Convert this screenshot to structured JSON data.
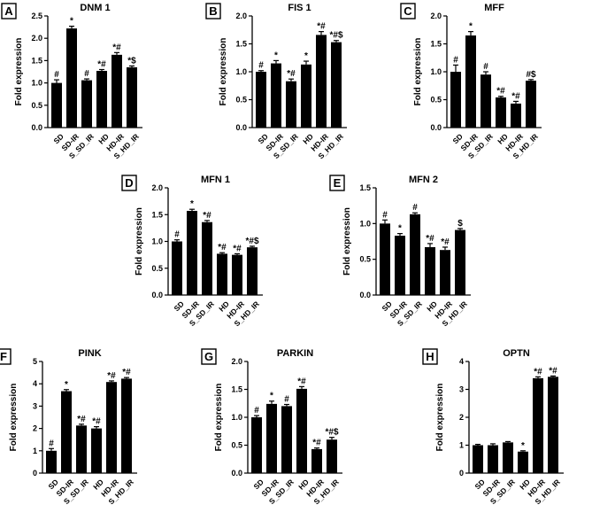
{
  "figure": {
    "background": "#ffffff",
    "bar_color": "#000000"
  },
  "chart_data": [
    {
      "letter": "A",
      "title": "DNM 1",
      "type": "bar",
      "ylabel": "Fold expression",
      "categories": [
        "SD",
        "SD-IR",
        "S_SD_IR",
        "HD",
        "HD-IR",
        "S_HD_IR"
      ],
      "values": [
        1.0,
        2.22,
        1.06,
        1.27,
        1.63,
        1.35
      ],
      "errors": [
        0.07,
        0.05,
        0.03,
        0.03,
        0.05,
        0.03
      ],
      "annotations": [
        "#",
        "*",
        "#",
        "*#",
        "*#",
        "*$"
      ],
      "ylim": [
        0,
        2.5
      ],
      "yticks": [
        "0.0",
        "0.5",
        "1.0",
        "1.5",
        "2.0",
        "2.5"
      ]
    },
    {
      "letter": "B",
      "title": "FIS 1",
      "type": "bar",
      "ylabel": "Fold expression",
      "categories": [
        "SD",
        "SD-IR",
        "S_SD_IR",
        "HD",
        "HD-IR",
        "S_HD_IR"
      ],
      "values": [
        1.0,
        1.15,
        0.83,
        1.13,
        1.66,
        1.53
      ],
      "errors": [
        0.02,
        0.05,
        0.04,
        0.06,
        0.06,
        0.03
      ],
      "annotations": [
        "#",
        "*",
        "*#",
        "*",
        "*#",
        "*#$"
      ],
      "ylim": [
        0,
        2.0
      ],
      "yticks": [
        "0.0",
        "0.5",
        "1.0",
        "1.5",
        "2.0"
      ]
    },
    {
      "letter": "C",
      "title": "MFF",
      "type": "bar",
      "ylabel": "Fold expression",
      "categories": [
        "SD",
        "SD-IR",
        "S_SD_IR",
        "HD",
        "HD-IR",
        "S_HD_IR"
      ],
      "values": [
        1.0,
        1.65,
        0.95,
        0.54,
        0.43,
        0.84
      ],
      "errors": [
        0.12,
        0.07,
        0.05,
        0.02,
        0.04,
        0.02
      ],
      "annotations": [
        "#",
        "*",
        "#",
        "*#",
        "*#",
        "#$"
      ],
      "ylim": [
        0,
        2.0
      ],
      "yticks": [
        "0.0",
        "0.5",
        "1.0",
        "1.5",
        "2.0"
      ]
    },
    {
      "letter": "D",
      "title": "MFN 1",
      "type": "bar",
      "ylabel": "Fold expression",
      "categories": [
        "SD",
        "SD-IR",
        "S_SD_IR",
        "HD",
        "HD-IR",
        "S_HD_IR"
      ],
      "values": [
        1.0,
        1.57,
        1.36,
        0.77,
        0.75,
        0.89
      ],
      "errors": [
        0.03,
        0.03,
        0.03,
        0.02,
        0.02,
        0.02
      ],
      "annotations": [
        "#",
        "*",
        "*#",
        "*#",
        "*#",
        "*#$"
      ],
      "ylim": [
        0,
        2.0
      ],
      "yticks": [
        "0.0",
        "0.5",
        "1.0",
        "1.5",
        "2.0"
      ]
    },
    {
      "letter": "E",
      "title": "MFN 2",
      "type": "bar",
      "ylabel": "Fold expression",
      "categories": [
        "SD",
        "SD-IR",
        "S_SD_IR",
        "HD",
        "HD-IR",
        "S_HD_IR"
      ],
      "values": [
        1.0,
        0.83,
        1.13,
        0.67,
        0.63,
        0.91
      ],
      "errors": [
        0.05,
        0.03,
        0.02,
        0.05,
        0.04,
        0.02
      ],
      "annotations": [
        "#",
        "*",
        "#",
        "*#",
        "*#",
        "$"
      ],
      "ylim": [
        0,
        1.5
      ],
      "yticks": [
        "0.0",
        "0.5",
        "1.0",
        "1.5"
      ]
    },
    {
      "letter": "F",
      "title": "PINK",
      "type": "bar",
      "ylabel": "Fold expression",
      "categories": [
        "SD",
        "SD-IR",
        "S_SD_IR",
        "HD",
        "HD-IR",
        "S_HD_IR"
      ],
      "values": [
        1.0,
        3.67,
        2.13,
        2.0,
        4.08,
        4.23
      ],
      "errors": [
        0.1,
        0.07,
        0.06,
        0.08,
        0.05,
        0.05
      ],
      "annotations": [
        "#",
        "*",
        "*#",
        "*#",
        "*#",
        "*#"
      ],
      "ylim": [
        0,
        5
      ],
      "yticks": [
        "0",
        "1",
        "2",
        "3",
        "4",
        "5"
      ]
    },
    {
      "letter": "G",
      "title": "PARKIN",
      "type": "bar",
      "ylabel": "Fold expression",
      "categories": [
        "SD",
        "SD-IR",
        "S_SD_IR",
        "HD",
        "HD-IR",
        "S_HD_IR"
      ],
      "values": [
        1.0,
        1.24,
        1.2,
        1.51,
        0.43,
        0.6
      ],
      "errors": [
        0.03,
        0.05,
        0.03,
        0.04,
        0.02,
        0.04
      ],
      "annotations": [
        "#",
        "*",
        "#",
        "*#",
        "*#",
        "*#$"
      ],
      "ylim": [
        0,
        2.0
      ],
      "yticks": [
        "0.0",
        "0.5",
        "1.0",
        "1.5",
        "2.0"
      ]
    },
    {
      "letter": "H",
      "title": "OPTN",
      "type": "bar",
      "ylabel": "Fold expression",
      "categories": [
        "SD",
        "SD-IR",
        "S_SD_IR",
        "HD",
        "HD-IR",
        "S_HD_IR"
      ],
      "values": [
        1.0,
        1.0,
        1.1,
        0.77,
        3.4,
        3.45
      ],
      "errors": [
        0.03,
        0.05,
        0.03,
        0.03,
        0.05,
        0.03
      ],
      "annotations": [
        "",
        "",
        "",
        "*",
        "*#",
        "*#"
      ],
      "ylim": [
        0,
        4
      ],
      "yticks": [
        "0",
        "1",
        "2",
        "3",
        "4"
      ]
    }
  ]
}
